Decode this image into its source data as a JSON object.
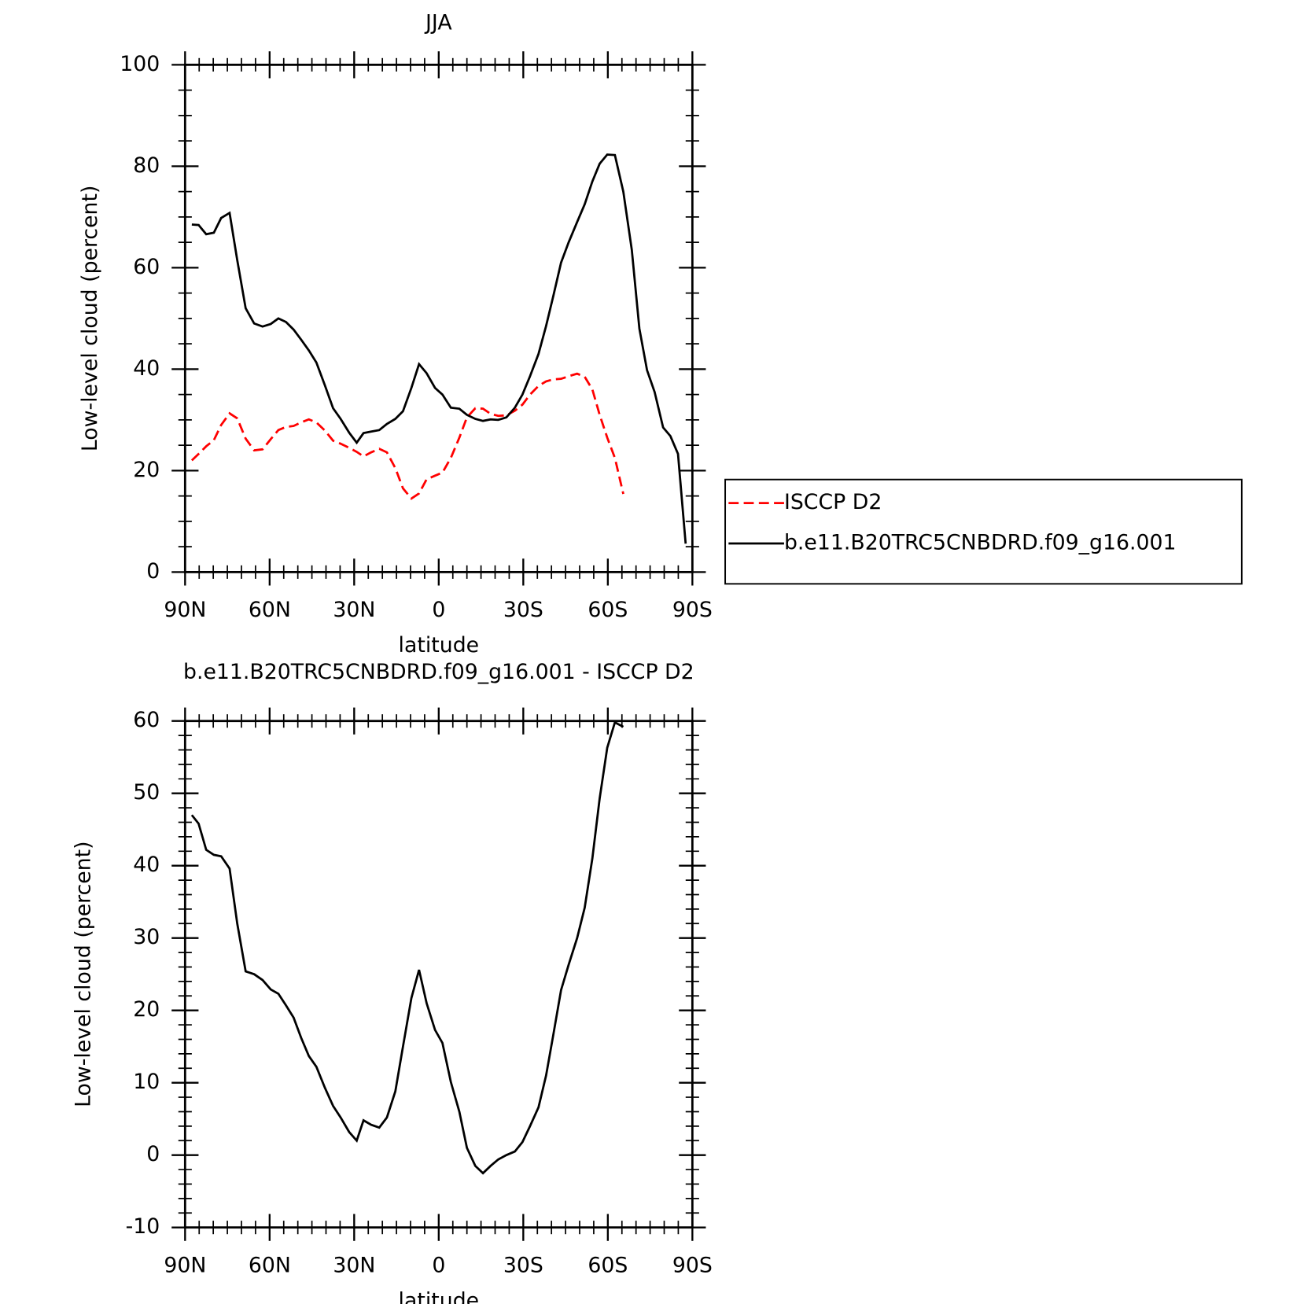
{
  "chart_data": [
    {
      "type": "line",
      "title": "JJA",
      "xlabel": "latitude",
      "ylabel": "Low-level cloud (percent)",
      "x": [
        87.6,
        85.2,
        82.5,
        79.8,
        77.2,
        74.2,
        71.5,
        68.5,
        65.5,
        62.5,
        59.6,
        56.9,
        54.2,
        51.5,
        48.8,
        46.1,
        43.4,
        40.4,
        37.5,
        34.8,
        31.8,
        29.1,
        26.7,
        24.0,
        21.1,
        18.4,
        15.4,
        12.7,
        9.7,
        7.0,
        4.3,
        1.3,
        -1.3,
        -4.3,
        -7.3,
        -10.0,
        -13.0,
        -15.7,
        -18.4,
        -21.1,
        -24.0,
        -27.0,
        -29.7,
        -32.4,
        -35.4,
        -38.1,
        -40.7,
        -43.4,
        -46.1,
        -49.1,
        -51.8,
        -54.5,
        -57.1,
        -59.8,
        -62.5,
        -65.5,
        -68.5,
        -71.2,
        -73.9,
        -76.6,
        -79.6,
        -82.2,
        -84.9,
        -87.6
      ],
      "series": [
        {
          "name": "ISCCP D2",
          "color": "#ff0000",
          "line_style": "dashed",
          "values": [
            22,
            23.3,
            24.8,
            26,
            29,
            31.3,
            30.3,
            26.3,
            24,
            24.2,
            26.2,
            28,
            28.6,
            28.8,
            29.5,
            30.1,
            29.5,
            27.9,
            25.9,
            25.3,
            24.5,
            23.7,
            22.8,
            23.6,
            24.3,
            23.6,
            20.5,
            16.5,
            14.5,
            15.5,
            18.3,
            19,
            19.6,
            22.5,
            26.5,
            30.5,
            32.3,
            32.2,
            31.2,
            30.8,
            30.9,
            31.8,
            33,
            35,
            36.7,
            37.6,
            38,
            38.1,
            38.6,
            39.1,
            38.5,
            36,
            31,
            26.5,
            22.5,
            15.4,
            null,
            null,
            null,
            null,
            null,
            null,
            null,
            null
          ]
        },
        {
          "name": "b.e11.B20TRC5CNBDRD.f09_g16.001",
          "color": "#000000",
          "line_style": "solid",
          "values": [
            68.5,
            68.4,
            66.6,
            66.9,
            69.8,
            70.8,
            61.5,
            52,
            49,
            48.4,
            48.9,
            50,
            49.3,
            47.8,
            45.8,
            43.7,
            41.3,
            36.8,
            32.3,
            30.2,
            27.5,
            25.5,
            27.4,
            27.7,
            28,
            29.2,
            30.2,
            31.7,
            36.3,
            41,
            39.2,
            36.3,
            35,
            32.4,
            32.2,
            31,
            30.2,
            29.8,
            30.1,
            30,
            30.5,
            32.4,
            35,
            38.6,
            43,
            48.5,
            54.5,
            61,
            65,
            69,
            72.5,
            77,
            80.5,
            82.3,
            82.2,
            75,
            63.5,
            48,
            39.8,
            35.5,
            28.5,
            26.8,
            23.3,
            5.6
          ]
        }
      ],
      "xlim": [
        90,
        -90
      ],
      "xticks": [
        {
          "value": 90,
          "label": "90N"
        },
        {
          "value": 60,
          "label": "60N"
        },
        {
          "value": 30,
          "label": "30N"
        },
        0,
        {
          "value": -30,
          "label": "30S"
        },
        {
          "value": -60,
          "label": "60S"
        },
        {
          "value": -90,
          "label": "90S"
        }
      ],
      "ylim": [
        0,
        100
      ],
      "yticks": [
        0,
        20,
        40,
        60,
        80,
        100
      ],
      "legend": "right"
    },
    {
      "type": "line",
      "title": "b.e11.B20TRC5CNBDRD.f09_g16.001 - ISCCP D2",
      "xlabel": "latitude",
      "ylabel": "Low-level cloud (percent)",
      "x": [
        87.6,
        85.2,
        82.5,
        79.8,
        77.2,
        74.2,
        71.5,
        68.5,
        65.5,
        62.5,
        59.6,
        56.9,
        54.2,
        51.5,
        48.8,
        46.1,
        43.4,
        40.4,
        37.5,
        34.8,
        31.8,
        29.1,
        26.7,
        24.0,
        21.1,
        18.4,
        15.4,
        12.7,
        9.7,
        7.0,
        4.3,
        1.3,
        -1.3,
        -4.3,
        -7.3,
        -10.0,
        -13.0,
        -15.7,
        -18.4,
        -21.1,
        -24.0,
        -27.0,
        -29.7,
        -32.4,
        -35.4,
        -38.1,
        -40.7,
        -43.4,
        -46.1,
        -49.1,
        -51.8,
        -54.5,
        -57.1,
        -59.8,
        -62.5,
        -65.5
      ],
      "series": [
        {
          "color": "#000000",
          "line_style": "solid",
          "values": [
            47,
            45.8,
            42.2,
            41.5,
            41.3,
            39.6,
            32,
            25.4,
            25,
            24.2,
            22.9,
            22.3,
            20.7,
            19,
            16.2,
            13.7,
            12.2,
            9.3,
            6.8,
            5.2,
            3.2,
            2,
            4.8,
            4.2,
            3.8,
            5.2,
            8.8,
            15,
            21.7,
            25.6,
            21,
            17.3,
            15.5,
            10.1,
            6,
            1,
            -1.5,
            -2.5,
            -1.5,
            -0.6,
            0,
            0.5,
            1.8,
            4,
            6.6,
            11,
            16.7,
            22.8,
            26.3,
            30,
            34.2,
            41,
            49.3,
            56.3,
            59.8,
            59.2
          ]
        }
      ],
      "xlim": [
        90,
        -90
      ],
      "xticks": [
        {
          "value": 90,
          "label": "90N"
        },
        {
          "value": 60,
          "label": "60N"
        },
        {
          "value": 30,
          "label": "30N"
        },
        0,
        {
          "value": -30,
          "label": "30S"
        },
        {
          "value": -60,
          "label": "60S"
        },
        {
          "value": -90,
          "label": "90S"
        }
      ],
      "ylim": [
        -10,
        60
      ],
      "yticks": [
        -10,
        0,
        10,
        20,
        30,
        40,
        50,
        60
      ]
    }
  ]
}
